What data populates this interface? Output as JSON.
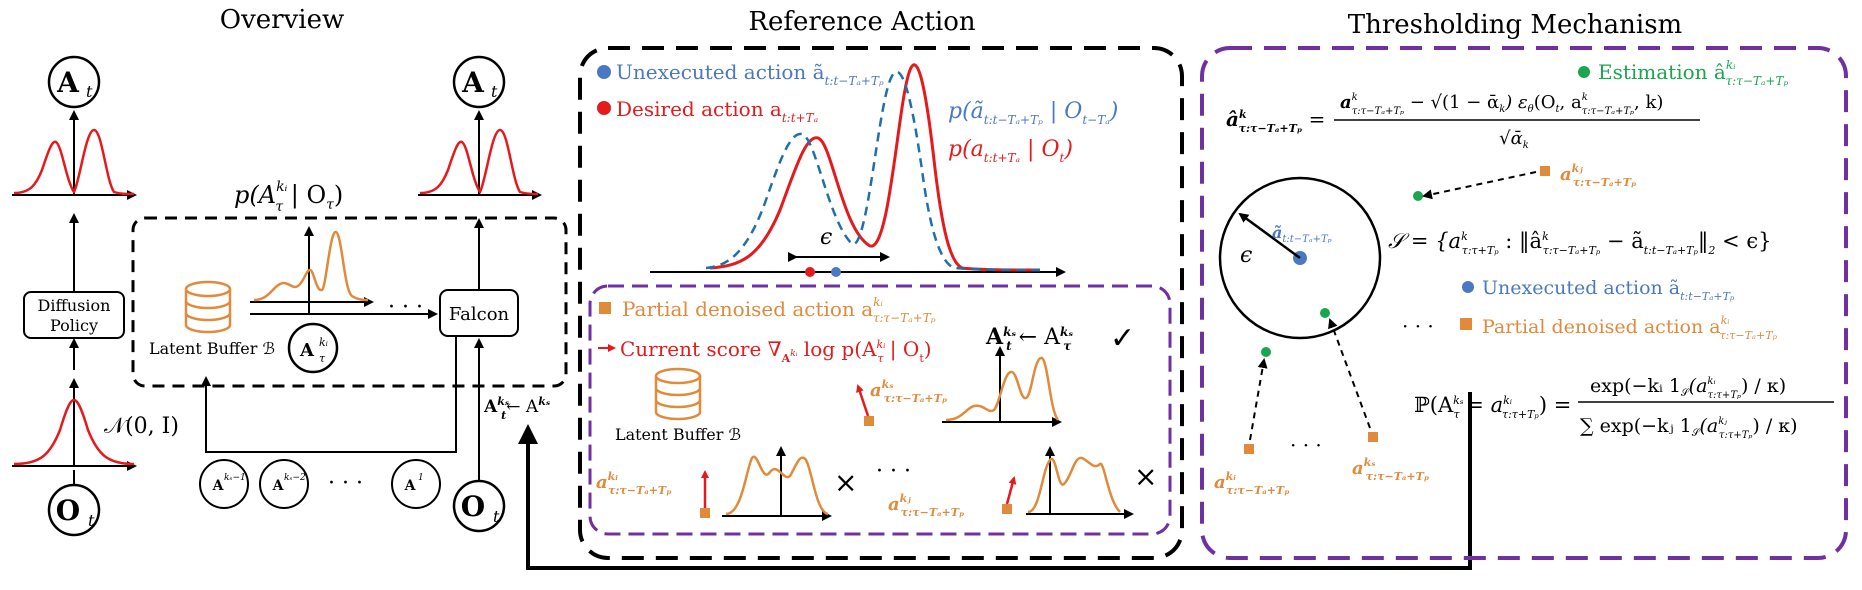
{
  "sections": {
    "overview": "Overview",
    "reference": "Reference Action",
    "threshold": "Thresholding Mechanism"
  },
  "overview": {
    "A_t_left": "A",
    "A_t_right": "A",
    "sub_t": "t",
    "O_t_left": "O",
    "O_t_right": "O",
    "diffusion_line1": "Diffusion",
    "diffusion_line2": "Policy",
    "falcon": "Falcon",
    "normal": "𝒩(0, I)",
    "prob": "p(A",
    "prob_tail": " | O",
    "latent_buffer": "Latent Buffer ℬ",
    "buffer_circle": "A",
    "dots": "· · ·",
    "bottom_circles": [
      "A",
      "A",
      "A"
    ],
    "bottom_sups": [
      "kₛ−1",
      "kₛ−2",
      "1"
    ],
    "bottom_dots": "· · ·",
    "assign": "A",
    "assign_arrow": "← A"
  },
  "colors": {
    "red": "#e41a1c",
    "blue": "#4a78c2",
    "orange": "#e08a3c",
    "green": "#1aa64f",
    "purple": "#7030a0",
    "black": "#000000"
  },
  "reference": {
    "legend_unexecuted": "Unexecuted action ã",
    "legend_unexecuted_sub": "t:t−Tₐ+Tₚ",
    "legend_desired": "Desired action a",
    "legend_desired_sub": "t:t+Tₐ",
    "p_blue": "p(ã",
    "p_blue_sub": "t:t−Tₐ+Tₚ",
    "p_blue_tail": " | O",
    "p_blue_tail_sub": "t−Tₐ",
    "p_red": "p(a",
    "p_red_sub": "t:t+Tₐ",
    "p_red_tail": " | O",
    "p_red_tail_sub": "t",
    "epsilon": "ϵ",
    "partial": "Partial denoised action a",
    "partial_sup": "kᵢ",
    "partial_sub": "τ:τ−Tₐ+Tₚ",
    "score": "Current score ∇",
    "score_tail": " log p(A",
    "score_tail2": " | O",
    "assign2": "A",
    "assign2_tail": " ← A",
    "check": "✓",
    "latent_buffer2": "Latent Buffer ℬ",
    "a_ks": "a",
    "a_ks_sup": "kₛ",
    "a_ks_sub": "τ:τ−Tₐ+Tₚ",
    "a_ki": "a",
    "a_ki_sup": "kᵢ",
    "a_ki_sub": "τ:τ−Tₐ+Tₚ",
    "a_kj": "a",
    "a_kj_sup": "kⱼ",
    "a_kj_sub": "τ:τ−Tₐ+Tₚ",
    "times": "×",
    "dots": "· · ·"
  },
  "threshold": {
    "estimation": "Estimation â",
    "estimation_sup": "kᵢ",
    "estimation_sub": "τ:τ−Tₐ+Tₚ",
    "formula_lhs": "â",
    "formula_num": "a",
    "formula_num_rest": " − √(1 − ᾱ",
    "formula_num_rest2": ") ε",
    "formula_num_rest3": "(O",
    "formula_num_rest4": ", a",
    "formula_num_rest5": ", k)",
    "formula_den": "√ᾱ",
    "set_lhs": "𝒮 = {a",
    "set_mid": " : ‖â",
    "set_mid2": " − ã",
    "set_tail": "‖",
    "set_end": " < ϵ}",
    "circle_eps": "ϵ",
    "circle_center": "ã",
    "circle_center_sub": "t:t−Tₐ+Tₚ",
    "a_kj": "a",
    "a_kj_sup": "kⱼ",
    "a_kj_sub": "τ:τ−Tₐ+Tₚ",
    "legend_unexec": "Unexecuted action ã",
    "legend_unexec_sub": "t:t−Tₐ+Tₚ",
    "legend_partial": "Partial denoised action a",
    "legend_partial_sup": "kᵢ",
    "legend_partial_sub": "τ:τ−Tₐ+Tₚ",
    "legend_dots": "· · ·",
    "prob_lhs": "ℙ(A",
    "prob_mid": " = a",
    "prob_rhs": ") =",
    "prob_num": "exp(−kᵢ 1",
    "prob_num2": "(a",
    "prob_num3": ") / κ)",
    "prob_den": "∑ exp(−kⱼ 1",
    "prob_den2": "(a",
    "prob_den3": ") / κ)",
    "bottom_ki": "a",
    "bottom_ki_sup": "kᵢ",
    "bottom_ki_sub": "τ:τ−Tₐ+Tₚ",
    "bottom_ks": "a",
    "bottom_ks_sup": "kₛ",
    "bottom_ks_sub": "τ:τ−Tₐ+Tₚ",
    "bottom_dots": "· · ·"
  }
}
